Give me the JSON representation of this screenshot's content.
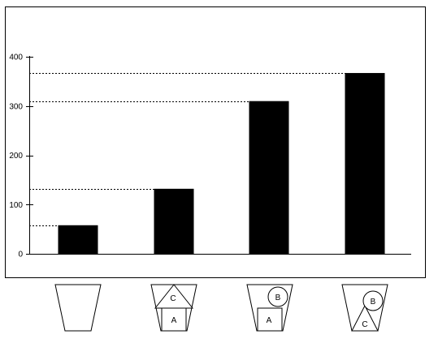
{
  "chart_data": {
    "type": "bar",
    "title": "",
    "xlabel": "",
    "ylabel": "",
    "ylim": [
      0,
      400
    ],
    "yticks": [
      0,
      100,
      200,
      300,
      400
    ],
    "grid": false,
    "reference_lines": "dashed horizontal line from y-axis to top of each bar",
    "categories": [
      {
        "label": "empty cup",
        "contents": []
      },
      {
        "label": "cup with A and C",
        "contents": [
          "A",
          "C"
        ]
      },
      {
        "label": "cup with A and B",
        "contents": [
          "A",
          "B"
        ]
      },
      {
        "label": "cup with B and C",
        "contents": [
          "B",
          "C"
        ]
      }
    ],
    "values": [
      58,
      132,
      310,
      367
    ],
    "colors": {
      "bar": "#000000",
      "axis": "#000000",
      "frame": "#000000"
    }
  },
  "cups": {
    "letters": {
      "a": "A",
      "b": "B",
      "c": "C"
    }
  }
}
